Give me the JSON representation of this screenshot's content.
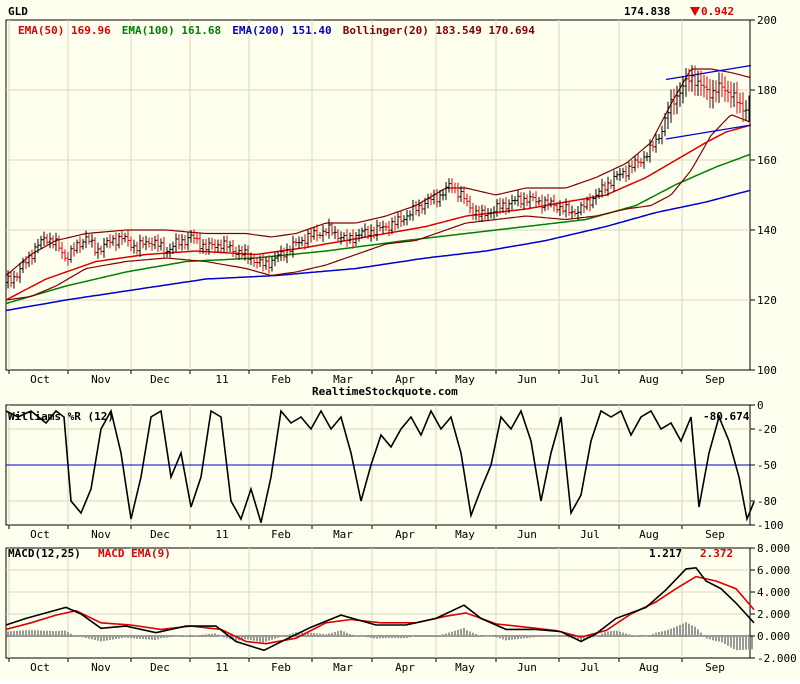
{
  "chart_data": [
    {
      "type": "ohlc",
      "symbol": "GLD",
      "last_price": "174.838",
      "change": "0.942",
      "change_direction": "down",
      "watermark": "RealtimeStockquote.com",
      "ylim": [
        100,
        200
      ],
      "y_ticks": [
        "200",
        "180",
        "160",
        "140",
        "120",
        "100"
      ],
      "x_ticks": [
        "Oct",
        "Nov",
        "Dec",
        "11",
        "Feb",
        "Mar",
        "Apr",
        "May",
        "Jun",
        "Jul",
        "Aug",
        "Sep"
      ],
      "legend": [
        {
          "label": "EMA(50)",
          "value": "169.96",
          "color": "#dd0000"
        },
        {
          "label": "EMA(100)",
          "value": "161.68",
          "color": "#008000"
        },
        {
          "label": "EMA(200)",
          "value": "151.40",
          "color": "#0000cc"
        },
        {
          "label": "Bollinger(20)",
          "value": "183.549 170.694",
          "color": "#800000"
        }
      ],
      "series": {
        "close_keypoints": [
          [
            0,
            125
          ],
          [
            10,
            127
          ],
          [
            20,
            131
          ],
          [
            30,
            135
          ],
          [
            40,
            138
          ],
          [
            50,
            136
          ],
          [
            60,
            132
          ],
          [
            70,
            135
          ],
          [
            80,
            138
          ],
          [
            90,
            134
          ],
          [
            100,
            136
          ],
          [
            115,
            138
          ],
          [
            130,
            135
          ],
          [
            145,
            137
          ],
          [
            160,
            134
          ],
          [
            170,
            136
          ],
          [
            185,
            138
          ],
          [
            200,
            135
          ],
          [
            215,
            136
          ],
          [
            230,
            134
          ],
          [
            245,
            132
          ],
          [
            255,
            130
          ],
          [
            265,
            131
          ],
          [
            280,
            134
          ],
          [
            295,
            137
          ],
          [
            310,
            139
          ],
          [
            325,
            140
          ],
          [
            340,
            137
          ],
          [
            355,
            139
          ],
          [
            370,
            140
          ],
          [
            390,
            142
          ],
          [
            405,
            145
          ],
          [
            420,
            148
          ],
          [
            435,
            150
          ],
          [
            445,
            153
          ],
          [
            455,
            150
          ],
          [
            465,
            146
          ],
          [
            475,
            144
          ],
          [
            490,
            146
          ],
          [
            505,
            148
          ],
          [
            520,
            149
          ],
          [
            535,
            148
          ],
          [
            550,
            147
          ],
          [
            565,
            145
          ],
          [
            575,
            146
          ],
          [
            590,
            150
          ],
          [
            605,
            154
          ],
          [
            620,
            157
          ],
          [
            635,
            160
          ],
          [
            645,
            163
          ],
          [
            655,
            168
          ],
          [
            665,
            176
          ],
          [
            675,
            180
          ],
          [
            685,
            184
          ],
          [
            695,
            181
          ],
          [
            705,
            179
          ],
          [
            715,
            181
          ],
          [
            725,
            179
          ],
          [
            735,
            175
          ],
          [
            745,
            174.8
          ]
        ],
        "ema50_keypoints": [
          [
            0,
            120
          ],
          [
            40,
            126
          ],
          [
            90,
            131
          ],
          [
            140,
            133
          ],
          [
            190,
            134
          ],
          [
            250,
            133
          ],
          [
            300,
            135
          ],
          [
            360,
            138
          ],
          [
            420,
            141
          ],
          [
            460,
            144
          ],
          [
            520,
            146
          ],
          [
            560,
            148
          ],
          [
            600,
            150
          ],
          [
            640,
            155
          ],
          [
            670,
            160
          ],
          [
            700,
            165
          ],
          [
            720,
            168
          ],
          [
            745,
            170
          ]
        ],
        "ema100_keypoints": [
          [
            0,
            119
          ],
          [
            60,
            124
          ],
          [
            120,
            128
          ],
          [
            180,
            131
          ],
          [
            250,
            132
          ],
          [
            320,
            134
          ],
          [
            400,
            137
          ],
          [
            460,
            139
          ],
          [
            520,
            141
          ],
          [
            580,
            143
          ],
          [
            630,
            147
          ],
          [
            670,
            153
          ],
          [
            710,
            158
          ],
          [
            745,
            161.7
          ]
        ],
        "ema200_keypoints": [
          [
            0,
            117
          ],
          [
            60,
            120
          ],
          [
            130,
            123
          ],
          [
            200,
            126
          ],
          [
            270,
            127
          ],
          [
            350,
            129
          ],
          [
            420,
            132
          ],
          [
            480,
            134
          ],
          [
            540,
            137
          ],
          [
            600,
            141
          ],
          [
            650,
            145
          ],
          [
            700,
            148
          ],
          [
            745,
            151.4
          ]
        ],
        "bb_upper_keypoints": [
          [
            0,
            127
          ],
          [
            25,
            133
          ],
          [
            50,
            137
          ],
          [
            80,
            139
          ],
          [
            120,
            140
          ],
          [
            160,
            140
          ],
          [
            200,
            139
          ],
          [
            240,
            139
          ],
          [
            265,
            138
          ],
          [
            290,
            139
          ],
          [
            320,
            142
          ],
          [
            350,
            142
          ],
          [
            380,
            144
          ],
          [
            410,
            147
          ],
          [
            440,
            152
          ],
          [
            460,
            152
          ],
          [
            490,
            150
          ],
          [
            520,
            152
          ],
          [
            560,
            152
          ],
          [
            590,
            155
          ],
          [
            620,
            159
          ],
          [
            645,
            165
          ],
          [
            665,
            176
          ],
          [
            685,
            186
          ],
          [
            705,
            186
          ],
          [
            725,
            185
          ],
          [
            745,
            183.5
          ]
        ],
        "bb_lower_keypoints": [
          [
            0,
            120
          ],
          [
            25,
            121
          ],
          [
            50,
            124
          ],
          [
            80,
            129
          ],
          [
            120,
            131
          ],
          [
            160,
            132
          ],
          [
            200,
            131
          ],
          [
            240,
            129
          ],
          [
            265,
            127
          ],
          [
            290,
            128
          ],
          [
            320,
            130
          ],
          [
            350,
            133
          ],
          [
            380,
            136
          ],
          [
            410,
            137
          ],
          [
            440,
            140
          ],
          [
            460,
            142
          ],
          [
            490,
            143
          ],
          [
            520,
            144
          ],
          [
            560,
            143
          ],
          [
            590,
            144
          ],
          [
            620,
            146
          ],
          [
            645,
            147
          ],
          [
            665,
            150
          ],
          [
            685,
            157
          ],
          [
            705,
            167
          ],
          [
            725,
            173
          ],
          [
            745,
            170.7
          ]
        ],
        "trendline_upper": [
          [
            660,
            183
          ],
          [
            745,
            187
          ]
        ],
        "trendline_lower": [
          [
            660,
            166
          ],
          [
            745,
            170
          ]
        ]
      }
    },
    {
      "type": "line",
      "title": "Williams %R (12)",
      "last_value": "-80.674",
      "ylim": [
        -100,
        0
      ],
      "y_ticks": [
        "0",
        "-20",
        "-50",
        "-80",
        "-100"
      ],
      "reference_line": -50,
      "x_ticks": [
        "Oct",
        "Nov",
        "Dec",
        "11",
        "Feb",
        "Mar",
        "Apr",
        "May",
        "Jun",
        "Jul",
        "Aug",
        "Sep"
      ],
      "keypoints": [
        [
          0,
          -5
        ],
        [
          12,
          -10
        ],
        [
          25,
          -5
        ],
        [
          40,
          -15
        ],
        [
          50,
          -5
        ],
        [
          58,
          -10
        ],
        [
          65,
          -80
        ],
        [
          75,
          -90
        ],
        [
          85,
          -70
        ],
        [
          95,
          -20
        ],
        [
          105,
          -5
        ],
        [
          115,
          -40
        ],
        [
          125,
          -95
        ],
        [
          135,
          -60
        ],
        [
          145,
          -10
        ],
        [
          155,
          -5
        ],
        [
          165,
          -60
        ],
        [
          175,
          -40
        ],
        [
          185,
          -85
        ],
        [
          195,
          -60
        ],
        [
          205,
          -5
        ],
        [
          215,
          -10
        ],
        [
          225,
          -80
        ],
        [
          235,
          -95
        ],
        [
          245,
          -70
        ],
        [
          255,
          -98
        ],
        [
          265,
          -60
        ],
        [
          275,
          -5
        ],
        [
          285,
          -15
        ],
        [
          295,
          -10
        ],
        [
          305,
          -20
        ],
        [
          315,
          -5
        ],
        [
          325,
          -20
        ],
        [
          335,
          -10
        ],
        [
          345,
          -40
        ],
        [
          355,
          -80
        ],
        [
          365,
          -50
        ],
        [
          375,
          -25
        ],
        [
          385,
          -35
        ],
        [
          395,
          -20
        ],
        [
          405,
          -10
        ],
        [
          415,
          -25
        ],
        [
          425,
          -5
        ],
        [
          435,
          -20
        ],
        [
          445,
          -10
        ],
        [
          455,
          -40
        ],
        [
          465,
          -92
        ],
        [
          475,
          -70
        ],
        [
          485,
          -50
        ],
        [
          495,
          -10
        ],
        [
          505,
          -20
        ],
        [
          515,
          -5
        ],
        [
          525,
          -30
        ],
        [
          535,
          -80
        ],
        [
          545,
          -40
        ],
        [
          555,
          -10
        ],
        [
          565,
          -90
        ],
        [
          575,
          -75
        ],
        [
          585,
          -30
        ],
        [
          595,
          -5
        ],
        [
          605,
          -10
        ],
        [
          615,
          -5
        ],
        [
          625,
          -25
        ],
        [
          635,
          -10
        ],
        [
          645,
          -5
        ],
        [
          655,
          -20
        ],
        [
          665,
          -15
        ],
        [
          675,
          -30
        ],
        [
          685,
          -10
        ],
        [
          693,
          -85
        ],
        [
          703,
          -40
        ],
        [
          713,
          -10
        ],
        [
          723,
          -30
        ],
        [
          733,
          -60
        ],
        [
          741,
          -95
        ],
        [
          748,
          -80.7
        ]
      ]
    },
    {
      "type": "line",
      "title": "MACD(12,25)",
      "signal_title": "MACD EMA(9)",
      "last_value": "1.217",
      "last_signal": "2.372",
      "ylim": [
        -2,
        8
      ],
      "y_ticks": [
        "8.000",
        "6.000",
        "4.000",
        "2.000",
        "0.000",
        "-2.000"
      ],
      "x_ticks": [
        "Oct",
        "Nov",
        "Dec",
        "11",
        "Feb",
        "Mar",
        "Apr",
        "May",
        "Jun",
        "Jul",
        "Aug",
        "Sep"
      ],
      "macd_keypoints": [
        [
          0,
          1.0
        ],
        [
          20,
          1.6
        ],
        [
          40,
          2.1
        ],
        [
          60,
          2.6
        ],
        [
          75,
          2.0
        ],
        [
          95,
          0.7
        ],
        [
          120,
          0.9
        ],
        [
          150,
          0.3
        ],
        [
          180,
          0.9
        ],
        [
          210,
          0.9
        ],
        [
          230,
          -0.5
        ],
        [
          258,
          -1.3
        ],
        [
          280,
          -0.3
        ],
        [
          305,
          0.8
        ],
        [
          335,
          1.9
        ],
        [
          370,
          1.0
        ],
        [
          400,
          1.0
        ],
        [
          430,
          1.6
        ],
        [
          458,
          2.8
        ],
        [
          475,
          1.6
        ],
        [
          500,
          0.6
        ],
        [
          530,
          0.6
        ],
        [
          555,
          0.4
        ],
        [
          575,
          -0.5
        ],
        [
          590,
          0.2
        ],
        [
          610,
          1.6
        ],
        [
          640,
          2.6
        ],
        [
          660,
          4.2
        ],
        [
          680,
          6.1
        ],
        [
          690,
          6.2
        ],
        [
          700,
          5.0
        ],
        [
          715,
          4.3
        ],
        [
          730,
          3.0
        ],
        [
          748,
          1.2
        ]
      ],
      "signal_keypoints": [
        [
          0,
          0.6
        ],
        [
          25,
          1.2
        ],
        [
          50,
          1.9
        ],
        [
          70,
          2.3
        ],
        [
          95,
          1.2
        ],
        [
          125,
          1.0
        ],
        [
          155,
          0.6
        ],
        [
          185,
          0.9
        ],
        [
          215,
          0.6
        ],
        [
          240,
          -0.5
        ],
        [
          260,
          -0.7
        ],
        [
          290,
          -0.2
        ],
        [
          320,
          1.2
        ],
        [
          345,
          1.5
        ],
        [
          375,
          1.2
        ],
        [
          410,
          1.2
        ],
        [
          440,
          1.8
        ],
        [
          460,
          2.1
        ],
        [
          490,
          1.1
        ],
        [
          520,
          0.8
        ],
        [
          550,
          0.5
        ],
        [
          575,
          -0.1
        ],
        [
          600,
          0.5
        ],
        [
          625,
          2.0
        ],
        [
          650,
          3.1
        ],
        [
          670,
          4.3
        ],
        [
          690,
          5.4
        ],
        [
          710,
          5.0
        ],
        [
          730,
          4.3
        ],
        [
          748,
          2.4
        ]
      ]
    }
  ]
}
